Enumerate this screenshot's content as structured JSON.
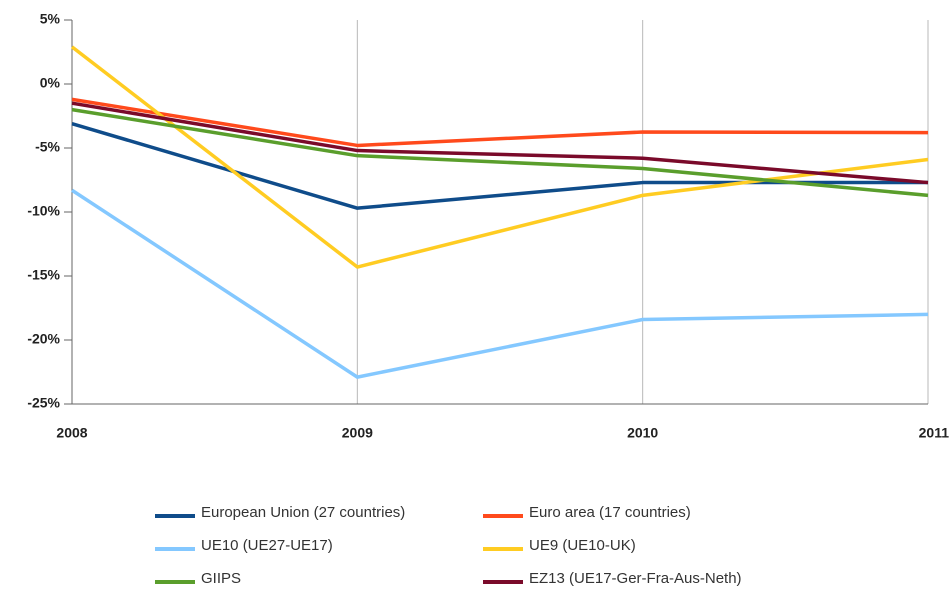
{
  "chart_data": {
    "type": "line",
    "categories": [
      "2008",
      "2009",
      "2010",
      "2011"
    ],
    "series": [
      {
        "name": "European Union (27 countries)",
        "color": "#0f4c8a",
        "values": [
          -3.1,
          -9.7,
          -7.7,
          -7.7
        ]
      },
      {
        "name": "Euro area (17 countries)",
        "color": "#ff4a1c",
        "values": [
          -1.2,
          -4.8,
          -3.75,
          -3.8
        ]
      },
      {
        "name": "UE10 (UE27-UE17)",
        "color": "#84c8ff",
        "values": [
          -8.3,
          -22.9,
          -18.4,
          -18.0
        ]
      },
      {
        "name": "UE9 (UE10-UK)",
        "color": "#ffcc22",
        "values": [
          2.9,
          -14.3,
          -8.7,
          -5.9
        ]
      },
      {
        "name": "GIIPS",
        "color": "#5a9e2c",
        "values": [
          -2.0,
          -5.6,
          -6.6,
          -8.7
        ]
      },
      {
        "name": "EZ13 (UE17-Ger-Fra-Aus-Neth)",
        "color": "#7a0a2a",
        "values": [
          -1.5,
          -5.2,
          -5.8,
          -7.7
        ]
      }
    ],
    "ylim": [
      -25,
      5
    ],
    "yticks": [
      {
        "value": 5,
        "label": "5%"
      },
      {
        "value": 0,
        "label": "0%"
      },
      {
        "value": -5,
        "label": "-5%"
      },
      {
        "value": -10,
        "label": "-10%"
      },
      {
        "value": -15,
        "label": "-15%"
      },
      {
        "value": -20,
        "label": "-20%"
      },
      {
        "value": -25,
        "label": "-25%"
      }
    ],
    "grid": true
  }
}
